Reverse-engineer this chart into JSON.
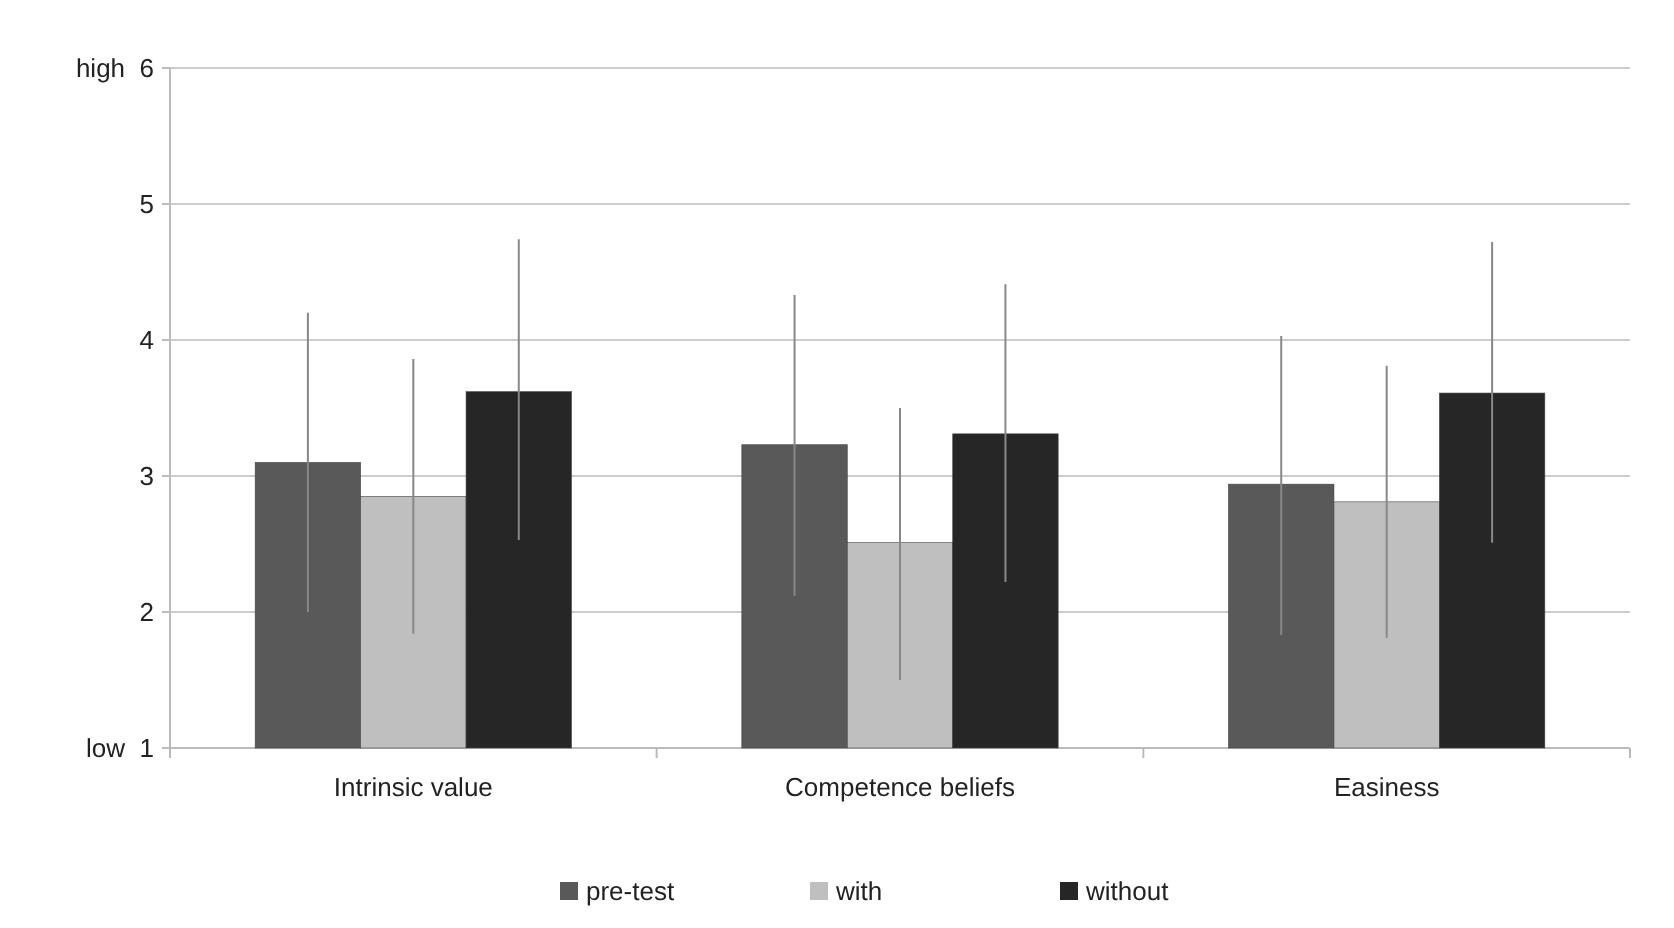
{
  "chart_data": {
    "type": "bar",
    "categories": [
      "Intrinsic value",
      "Competence beliefs",
      "Easiness"
    ],
    "series": [
      {
        "name": "pre-test",
        "color": "#595959",
        "values": [
          3.1,
          3.23,
          2.94
        ],
        "errors": [
          [
            2.0,
            4.2
          ],
          [
            2.12,
            4.33
          ],
          [
            1.83,
            4.03
          ]
        ]
      },
      {
        "name": "with",
        "color": "#bfbfbf",
        "values": [
          2.85,
          2.51,
          2.81
        ],
        "errors": [
          [
            1.84,
            3.86
          ],
          [
            1.5,
            3.5
          ],
          [
            1.81,
            3.81
          ]
        ]
      },
      {
        "name": "without",
        "color": "#262626",
        "values": [
          3.62,
          3.31,
          3.61
        ],
        "errors": [
          [
            2.53,
            4.74
          ],
          [
            2.22,
            4.41
          ],
          [
            2.51,
            4.72
          ]
        ]
      }
    ],
    "ylim": [
      1,
      6
    ],
    "yticks": [
      {
        "value": 1,
        "label": "low  1"
      },
      2,
      3,
      4,
      5,
      {
        "value": 6,
        "label": "high  6"
      }
    ],
    "grid": "y",
    "legend": "bottom"
  }
}
